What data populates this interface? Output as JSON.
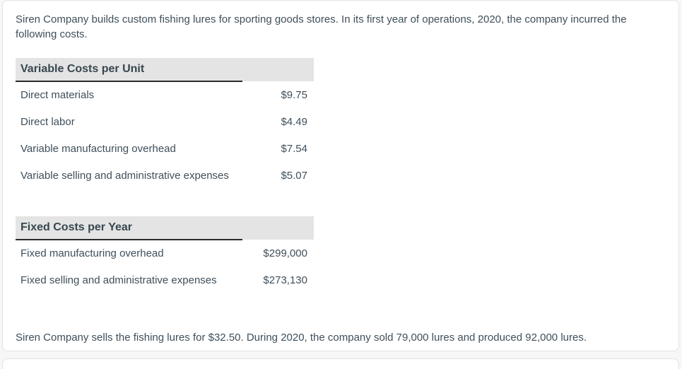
{
  "intro_paragraph": "Siren Company builds custom fishing lures for sporting goods stores. In its first year of operations, 2020, the company incurred the following costs.",
  "closing_paragraph": "Siren Company sells the fishing lures for $32.50. During 2020, the company sold 79,000 lures and produced 92,000 lures.",
  "variable_costs": {
    "title": "Variable Costs per Unit",
    "rows": [
      {
        "label": "Direct materials",
        "value": "$9.75"
      },
      {
        "label": "Direct labor",
        "value": "$4.49"
      },
      {
        "label": "Variable manufacturing overhead",
        "value": "$7.54"
      },
      {
        "label": "Variable selling and administrative expenses",
        "value": "$5.07"
      }
    ]
  },
  "fixed_costs": {
    "title": "Fixed Costs per Year",
    "rows": [
      {
        "label": "Fixed manufacturing overhead",
        "value": "$299,000"
      },
      {
        "label": "Fixed selling and administrative expenses",
        "value": "$273,130"
      }
    ]
  },
  "colors": {
    "text": "#3f4f5b",
    "heading_text": "#37474f",
    "table_header_bg": "#e4e4e4",
    "table_header_underline": "#2b2b2b",
    "card_border": "#e3e3e3",
    "card_bg": "#ffffff",
    "page_bg": "#f7f7f7"
  }
}
